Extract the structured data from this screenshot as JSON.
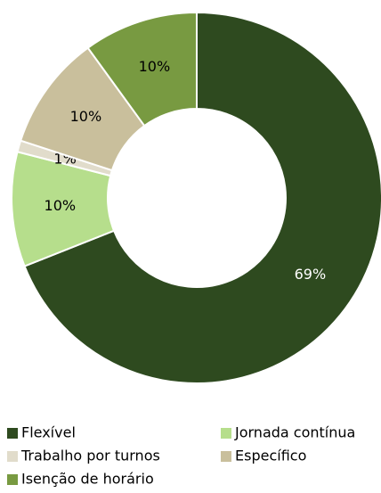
{
  "chart_data": {
    "type": "donut",
    "categories": [
      "Flexível",
      "Jornada contínua",
      "Trabalho por turnos",
      "Específico",
      "Isenção de horário"
    ],
    "values": [
      69,
      10,
      1,
      10,
      10
    ],
    "value_labels": [
      "69%",
      "10%",
      "1%",
      "10%",
      "10%"
    ],
    "colors": [
      "#2e4a1f",
      "#b6de8c",
      "#e1dccb",
      "#c9bf9c",
      "#789a41"
    ],
    "legend": "bottom"
  }
}
